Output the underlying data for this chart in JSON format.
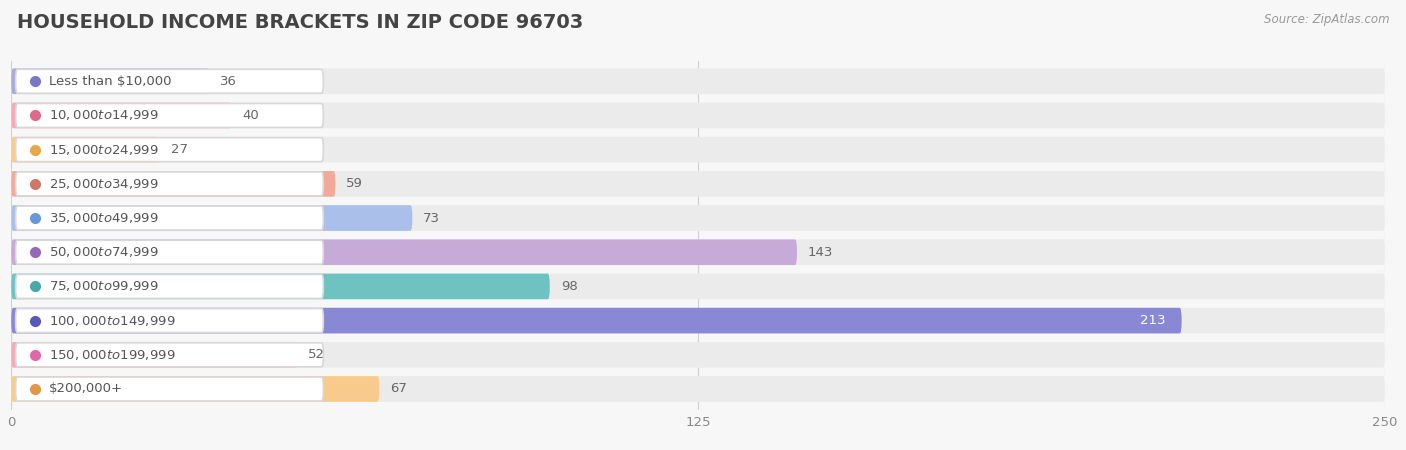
{
  "title": "HOUSEHOLD INCOME BRACKETS IN ZIP CODE 96703",
  "source": "Source: ZipAtlas.com",
  "categories": [
    "Less than $10,000",
    "$10,000 to $14,999",
    "$15,000 to $24,999",
    "$25,000 to $34,999",
    "$35,000 to $49,999",
    "$50,000 to $74,999",
    "$75,000 to $99,999",
    "$100,000 to $149,999",
    "$150,000 to $199,999",
    "$200,000+"
  ],
  "values": [
    36,
    40,
    27,
    59,
    73,
    143,
    98,
    213,
    52,
    67
  ],
  "bar_colors": [
    "#aaaad8",
    "#f5aaba",
    "#f8ca8c",
    "#f2a99a",
    "#aabfea",
    "#c8aad8",
    "#6ec2c2",
    "#8888d4",
    "#f5aaba",
    "#f8ca8c"
  ],
  "dot_colors": [
    "#7878c8",
    "#e06888",
    "#e8a848",
    "#d07868",
    "#6898d8",
    "#9868b8",
    "#48a8a8",
    "#5858b8",
    "#e068a8",
    "#e09848"
  ],
  "xlim": [
    0,
    250
  ],
  "xticks": [
    0,
    125,
    250
  ],
  "background_color": "#f7f7f7",
  "bar_background_color": "#ebebeb",
  "row_background_even": "#f0f0f0",
  "row_background_odd": "#fafafa",
  "title_fontsize": 14,
  "label_fontsize": 9.5,
  "value_fontsize": 9.5,
  "tick_fontsize": 9.5
}
